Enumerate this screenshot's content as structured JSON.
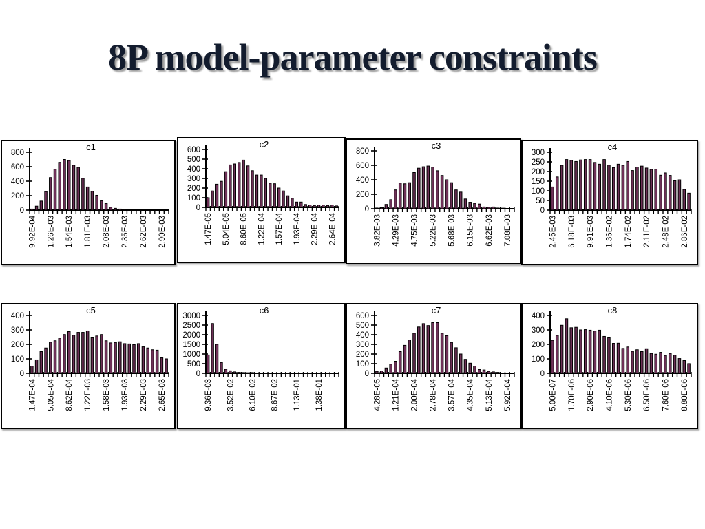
{
  "slide": {
    "title": "8P model-parameter constraints"
  },
  "theme": {
    "background": "#ffffff",
    "title_color": "#131c2e",
    "title_shadow": "#9b9b9b",
    "bar_fill": "#6f3158",
    "bar_stroke": "#000000",
    "axis_color": "#000000",
    "panel_border": "#000000"
  },
  "chart_data": [
    {
      "type": "bar",
      "title": "c1",
      "ylim": [
        0,
        800
      ],
      "yticks": [
        0,
        200,
        400,
        600,
        800
      ],
      "grid": false,
      "legend": null,
      "label_every": 4,
      "x_tick_labels": [
        "9.92E-04",
        "1.26E-03",
        "1.54E-03",
        "1.81E-03",
        "2.08E-03",
        "2.35E-03",
        "2.62E-03",
        "2.90E-03"
      ],
      "values": [
        15,
        55,
        125,
        255,
        450,
        565,
        660,
        700,
        685,
        620,
        590,
        440,
        320,
        260,
        205,
        130,
        90,
        40,
        25,
        15,
        10,
        8,
        5,
        3,
        3,
        2,
        2,
        1,
        1,
        1
      ]
    },
    {
      "type": "bar",
      "title": "c2",
      "ylim": [
        0,
        600
      ],
      "yticks": [
        0,
        100,
        200,
        300,
        400,
        500,
        600
      ],
      "grid": false,
      "legend": null,
      "label_every": 4,
      "x_tick_labels": [
        "1.47E-05",
        "5.04E-05",
        "8.60E-05",
        "1.22E-04",
        "1.57E-04",
        "1.93E-04",
        "2.29E-04",
        "2.64E-04"
      ],
      "values": [
        100,
        170,
        240,
        270,
        370,
        440,
        450,
        465,
        490,
        430,
        380,
        335,
        335,
        300,
        250,
        245,
        200,
        170,
        120,
        95,
        55,
        55,
        30,
        25,
        20,
        25,
        25,
        20,
        25,
        15
      ]
    },
    {
      "type": "bar",
      "title": "c3",
      "ylim": [
        0,
        800
      ],
      "yticks": [
        0,
        200,
        400,
        600,
        800
      ],
      "grid": false,
      "legend": null,
      "label_every": 4,
      "x_tick_labels": [
        "3.82E-03",
        "4.29E-03",
        "4.75E-03",
        "5.22E-03",
        "5.68E-03",
        "6.15E-03",
        "6.62E-03",
        "7.08E-03"
      ],
      "values": [
        10,
        15,
        60,
        125,
        260,
        355,
        345,
        360,
        500,
        560,
        580,
        590,
        575,
        525,
        460,
        400,
        360,
        260,
        230,
        135,
        90,
        75,
        65,
        25,
        20,
        25,
        10,
        8,
        5,
        3
      ]
    },
    {
      "type": "bar",
      "title": "c4",
      "ylim": [
        0,
        300
      ],
      "yticks": [
        0,
        50,
        100,
        150,
        200,
        250,
        300
      ],
      "grid": false,
      "legend": null,
      "label_every": 4,
      "x_tick_labels": [
        "2.45E-03",
        "6.18E-03",
        "9.91E-03",
        "1.36E-02",
        "1.74E-02",
        "2.11E-02",
        "2.48E-02",
        "2.86E-02"
      ],
      "values": [
        120,
        172,
        232,
        262,
        258,
        252,
        260,
        262,
        262,
        247,
        238,
        262,
        233,
        220,
        238,
        232,
        252,
        205,
        223,
        228,
        218,
        211,
        212,
        181,
        193,
        180,
        152,
        157,
        107,
        88
      ]
    },
    {
      "type": "bar",
      "title": "c5",
      "ylim": [
        0,
        400
      ],
      "yticks": [
        0,
        100,
        200,
        300,
        400
      ],
      "grid": false,
      "legend": null,
      "label_every": 4,
      "x_tick_labels": [
        "1.47E-04",
        "5.05E-04",
        "8.62E-04",
        "1.22E-03",
        "1.58E-03",
        "1.93E-03",
        "2.29E-03",
        "2.65E-03"
      ],
      "values": [
        50,
        93,
        150,
        175,
        215,
        225,
        243,
        268,
        288,
        263,
        283,
        283,
        293,
        250,
        258,
        268,
        225,
        210,
        213,
        218,
        205,
        203,
        198,
        205,
        183,
        175,
        163,
        160,
        107,
        100
      ]
    },
    {
      "type": "bar",
      "title": "c6",
      "ylim": [
        0,
        3000
      ],
      "yticks": [
        0,
        500,
        1000,
        1500,
        2000,
        2500,
        3000
      ],
      "grid": false,
      "legend": null,
      "label_every": 5,
      "x_tick_labels": [
        "9.36E-03",
        "3.52E-02",
        "6.10E-02",
        "8.67E-02",
        "1.13E-01",
        "1.38E-01"
      ],
      "values": [
        950,
        2580,
        1500,
        560,
        210,
        130,
        75,
        50,
        40,
        30,
        40,
        25,
        20,
        15,
        10,
        10,
        8,
        5,
        5,
        4,
        3,
        3,
        2,
        2,
        2,
        1,
        1,
        1,
        1,
        1
      ]
    },
    {
      "type": "bar",
      "title": "c7",
      "ylim": [
        0,
        600
      ],
      "yticks": [
        0,
        100,
        200,
        300,
        400,
        500,
        600
      ],
      "grid": false,
      "legend": null,
      "label_every": 4,
      "x_tick_labels": [
        "4.28E-05",
        "1.21E-04",
        "2.00E-04",
        "2.78E-04",
        "3.57E-04",
        "4.35E-04",
        "5.13E-04",
        "5.92E-04"
      ],
      "values": [
        20,
        25,
        55,
        95,
        125,
        225,
        290,
        345,
        415,
        480,
        515,
        495,
        525,
        525,
        415,
        390,
        320,
        265,
        200,
        145,
        105,
        75,
        40,
        35,
        20,
        15,
        10,
        5,
        3,
        2
      ]
    },
    {
      "type": "bar",
      "title": "c8",
      "ylim": [
        0,
        400
      ],
      "yticks": [
        0,
        100,
        200,
        300,
        400
      ],
      "grid": false,
      "legend": null,
      "label_every": 4,
      "x_tick_labels": [
        "5.00E-07",
        "1.70E-06",
        "2.90E-06",
        "4.10E-06",
        "5.30E-06",
        "6.50E-06",
        "7.60E-06",
        "8.80E-06"
      ],
      "values": [
        228,
        262,
        332,
        377,
        315,
        318,
        300,
        302,
        298,
        292,
        298,
        255,
        250,
        207,
        208,
        172,
        182,
        152,
        163,
        150,
        170,
        137,
        132,
        145,
        123,
        137,
        125,
        102,
        88,
        67
      ]
    }
  ]
}
